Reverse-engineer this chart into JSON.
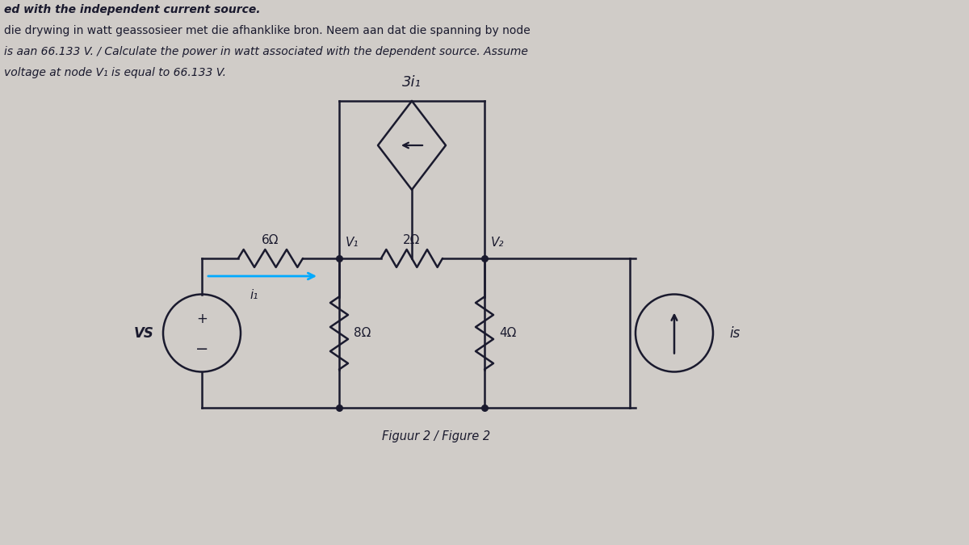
{
  "bg_color": "#d0ccc8",
  "text_color": "#1a1a2e",
  "line_color": "#1a1a2e",
  "title_lines": [
    "ed with the independent current source.",
    "die drywing in watt geassosieer met die afhanklike bron. Neem aan dat die spanning by node",
    "is aan 66.133 V. / Calculate the power in watt associated with the dependent source. Assume",
    "voltage at node V₁ is equal to 66.133 V."
  ],
  "caption": "Figuur 2 / Figure 2",
  "dep_source_label": "3i₁",
  "r1_label": "6Ω",
  "r2_label": "2Ω",
  "r3_label": "8Ω",
  "r4_label": "4Ω",
  "v1_label": "V₁",
  "v2_label": "V₂",
  "vs_label": "VS",
  "is_label": "is",
  "i1_label": "i₁",
  "arrow_color": "#00aaff",
  "xL": 2.5,
  "xV1": 4.2,
  "xV2": 6.0,
  "xR": 7.8,
  "yT": 3.55,
  "yB": 1.7,
  "dCy": 4.95,
  "dHH": 0.55,
  "dHW": 0.42,
  "lw": 1.8
}
